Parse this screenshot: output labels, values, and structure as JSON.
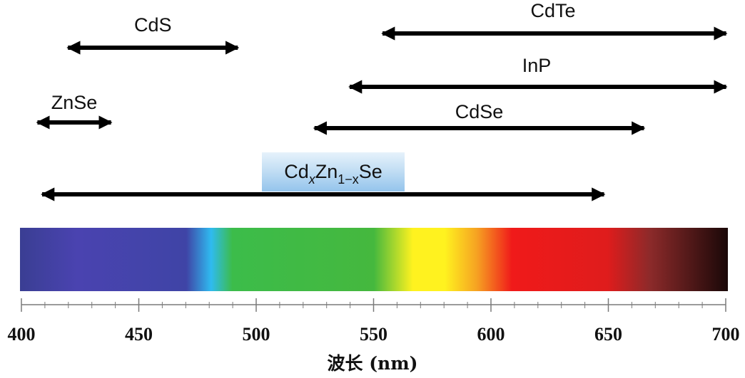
{
  "figure": {
    "x_axis": {
      "title": "波长 (nm)",
      "min": 400,
      "max": 700,
      "major_ticks": [
        "400",
        "450",
        "500",
        "550",
        "600",
        "650",
        "700"
      ],
      "minor_step": 10
    },
    "ranges": [
      {
        "id": "cdte",
        "label": "CdTe",
        "start": 552,
        "end": 702
      },
      {
        "id": "cds",
        "label": "CdS",
        "start": 418,
        "end": 494
      },
      {
        "id": "inp",
        "label": "InP",
        "start": 538,
        "end": 702
      },
      {
        "id": "znse",
        "label": "ZnSe",
        "start": 405,
        "end": 440
      },
      {
        "id": "cdse",
        "label": "CdSe",
        "start": 523,
        "end": 667
      },
      {
        "id": "cdznse",
        "label_parts": [
          "Cd",
          "x",
          "Zn",
          "1−x",
          "Se"
        ],
        "start": 407,
        "end": 650,
        "highlighted": true
      }
    ],
    "spectrum_colors": [
      "#3a3e93",
      "#4a43b0",
      "#3f44a6",
      "#2fbbf0",
      "#3cbc4a",
      "#45b83e",
      "#c5e03a",
      "#fff21f",
      "#f6a322",
      "#f01a1a",
      "#df1c1c",
      "#8c2a2a",
      "#1a0808"
    ]
  }
}
